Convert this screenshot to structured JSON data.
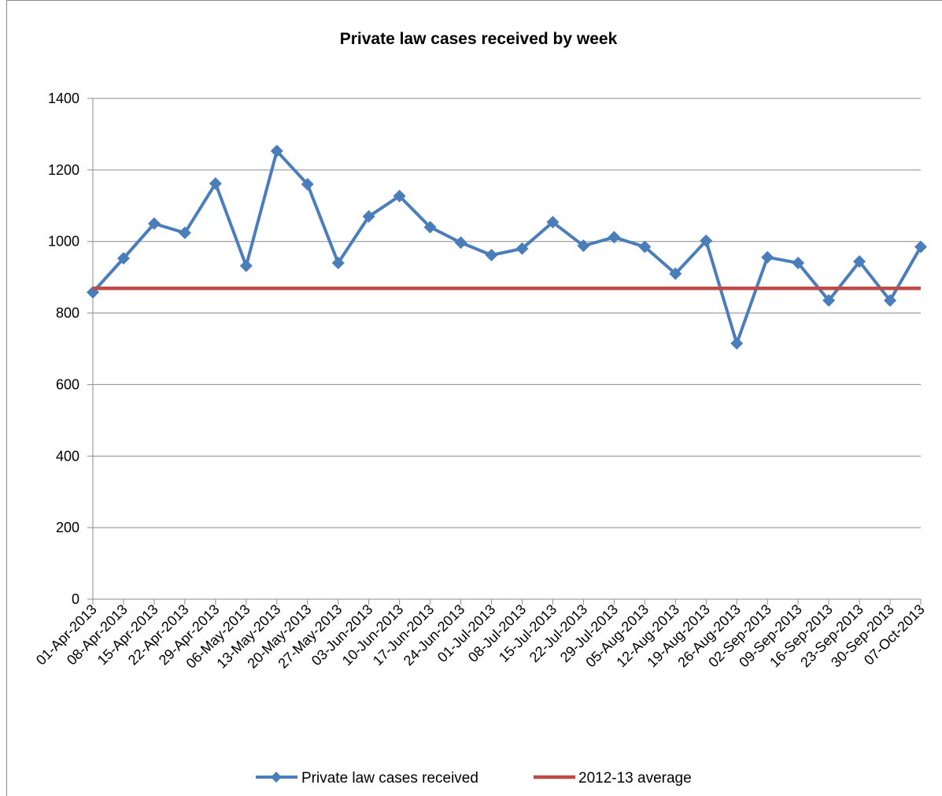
{
  "chart_data": {
    "type": "line",
    "title": "Private law cases received by week",
    "xlabel": "",
    "ylabel": "",
    "ylim": [
      0,
      1400
    ],
    "yticks": [
      0,
      200,
      400,
      600,
      800,
      1000,
      1200,
      1400
    ],
    "grid": true,
    "legend_position": "bottom",
    "categories": [
      "01-Apr-2013",
      "08-Apr-2013",
      "15-Apr-2013",
      "22-Apr-2013",
      "29-Apr-2013",
      "06-May-2013",
      "13-May-2013",
      "20-May-2013",
      "27-May-2013",
      "03-Jun-2013",
      "10-Jun-2013",
      "17-Jun-2013",
      "24-Jun-2013",
      "01-Jul-2013",
      "08-Jul-2013",
      "15-Jul-2013",
      "22-Jul-2013",
      "29-Jul-2013",
      "05-Aug-2013",
      "12-Aug-2013",
      "19-Aug-2013",
      "26-Aug-2013",
      "02-Sep-2013",
      "09-Sep-2013",
      "16-Sep-2013",
      "23-Sep-2013",
      "30-Sep-2013",
      "07-Oct-2013"
    ],
    "series": [
      {
        "name": "Private law cases received",
        "color": "#4a7ebb",
        "marker": "diamond",
        "values": [
          858,
          953,
          1050,
          1024,
          1162,
          932,
          1253,
          1160,
          940,
          1070,
          1127,
          1040,
          997,
          962,
          980,
          1054,
          988,
          1012,
          985,
          910,
          1002,
          715,
          956,
          940,
          835,
          944,
          835,
          985
        ]
      },
      {
        "name": "2012-13 average",
        "color": "#be4b48",
        "marker": "none",
        "values": [
          869,
          869,
          869,
          869,
          869,
          869,
          869,
          869,
          869,
          869,
          869,
          869,
          869,
          869,
          869,
          869,
          869,
          869,
          869,
          869,
          869,
          869,
          869,
          869,
          869,
          869,
          869,
          869
        ]
      }
    ]
  }
}
